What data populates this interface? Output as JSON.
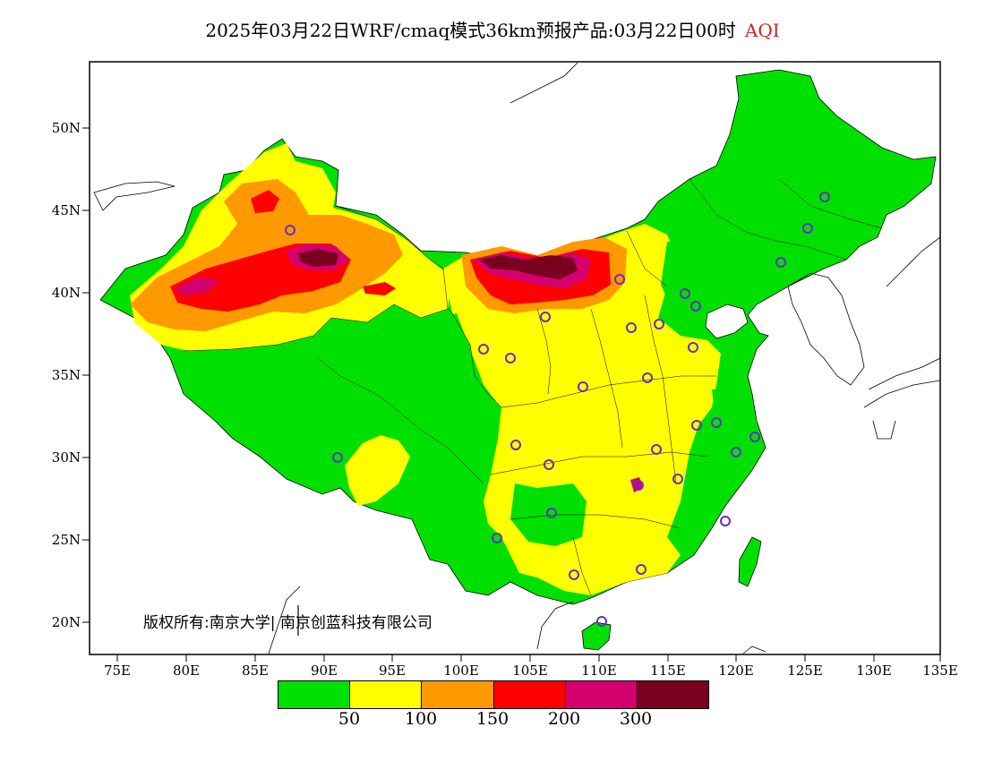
{
  "title": {
    "main": "2025年03月22日WRF/cmaq模式36km预报产品:03月22日00时",
    "variable": "AQI"
  },
  "latitude_labels": [
    "50N",
    "45N",
    "40N",
    "35N",
    "30N",
    "25N",
    "20N"
  ],
  "longitude_labels": [
    "75E",
    "80E",
    "85E",
    "90E",
    "95E",
    "100E",
    "105E",
    "110E",
    "115E",
    "120E",
    "125E",
    "130E",
    "135E"
  ],
  "copyright": "版权所有:南京大学| 南京创蓝科技有限公司",
  "legend": {
    "colors": [
      "#00e000",
      "#ffff00",
      "#ff9900",
      "#ff0000",
      "#d4006e",
      "#7a0020"
    ],
    "thresholds": [
      "50",
      "100",
      "150",
      "200",
      "300"
    ]
  },
  "map_colors": {
    "background": "#ffffff",
    "good": "#00e000",
    "moderate": "#ffff00",
    "light_pollution": "#ff9900",
    "moderate_pollution": "#ff0000",
    "heavy_pollution": "#d4006e",
    "severe_pollution": "#7a0020",
    "station_marker": "#6a2cc8"
  }
}
